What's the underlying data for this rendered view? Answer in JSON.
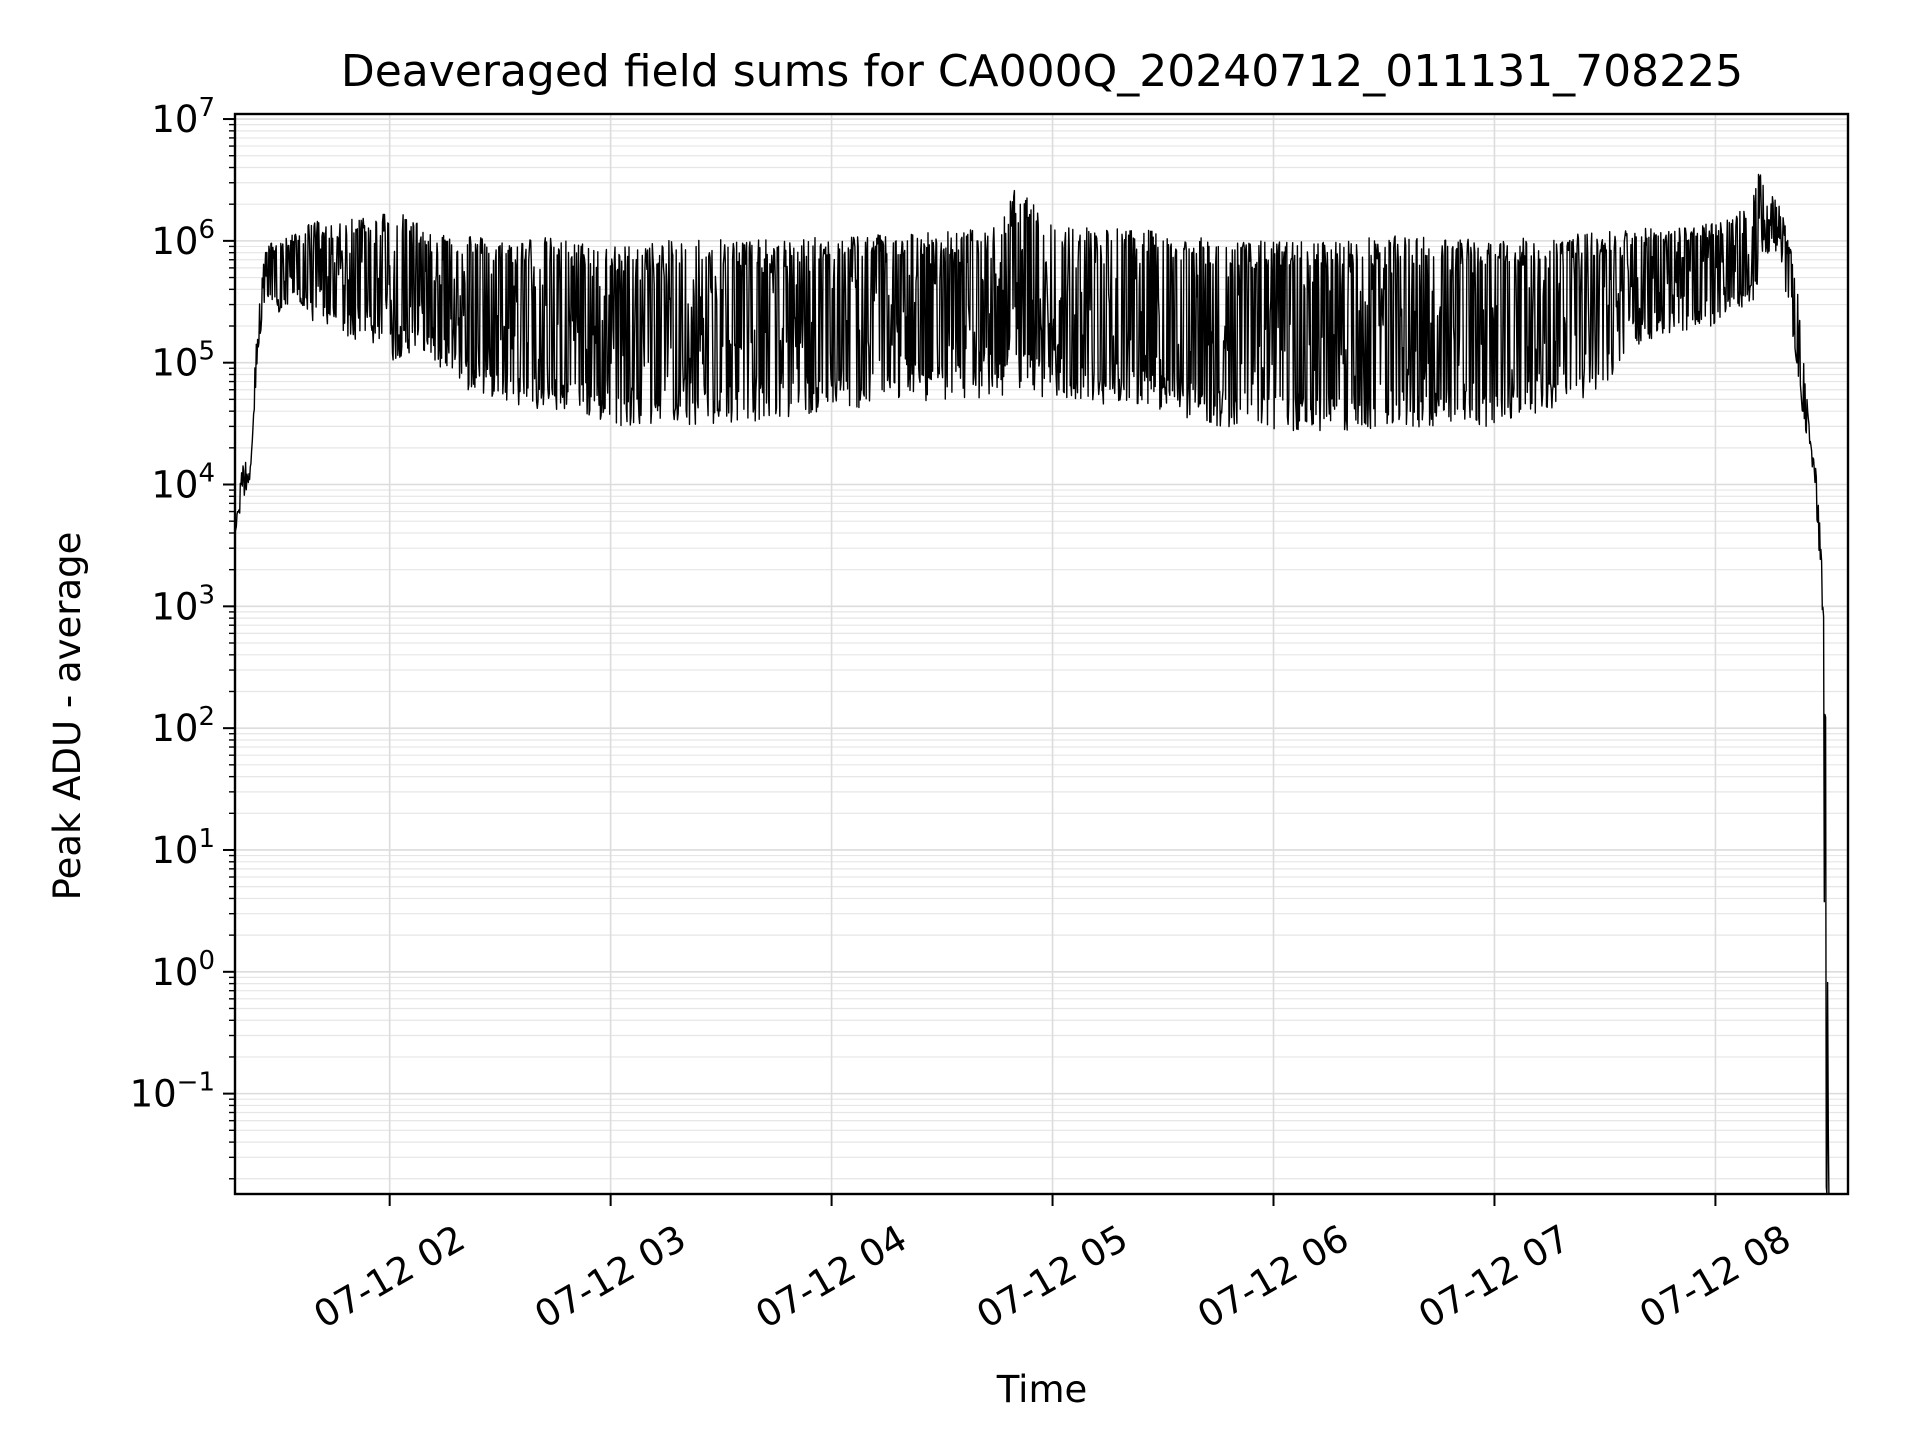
{
  "chart_data": {
    "type": "line",
    "title": "Deaveraged field sums for CA000Q_20240712_011131_708225",
    "xlabel": "Time",
    "ylabel": "Peak ADU - average",
    "x_axis": "time",
    "x_range": [
      "2024-07-12T01:18:00",
      "2024-07-12T08:36:00"
    ],
    "y_scale": "log",
    "ylim": [
      0.015,
      11000000
    ],
    "grid": true,
    "legend": "none",
    "line_color": "#000000",
    "x_tick_labels": [
      "07-12 02",
      "07-12 03",
      "07-12 04",
      "07-12 05",
      "07-12 06",
      "07-12 07",
      "07-12 08"
    ],
    "x_tick_times": [
      "2024-07-12T02:00:00",
      "2024-07-12T03:00:00",
      "2024-07-12T04:00:00",
      "2024-07-12T05:00:00",
      "2024-07-12T06:00:00",
      "2024-07-12T07:00:00",
      "2024-07-12T08:00:00"
    ],
    "y_tick_labels": [
      {
        "base": "10",
        "exp": "7",
        "value": 10000000
      },
      {
        "base": "10",
        "exp": "6",
        "value": 1000000
      },
      {
        "base": "10",
        "exp": "5",
        "value": 100000
      },
      {
        "base": "10",
        "exp": "4",
        "value": 10000
      },
      {
        "base": "10",
        "exp": "3",
        "value": 1000
      },
      {
        "base": "10",
        "exp": "2",
        "value": 100
      },
      {
        "base": "10",
        "exp": "1",
        "value": 10
      },
      {
        "base": "10",
        "exp": "0",
        "value": 1
      },
      {
        "base": "10",
        "exp": "−1",
        "value": 0.1
      }
    ],
    "series": [
      {
        "x": [
          "01:18",
          "01:20",
          "01:22",
          "01:24",
          "01:26",
          "01:28",
          "01:30",
          "01:35",
          "01:40",
          "01:45",
          "01:50",
          "01:55",
          "02:00",
          "02:05",
          "02:10",
          "02:15",
          "02:20",
          "02:30",
          "02:40",
          "02:50",
          "03:00",
          "03:15",
          "03:30",
          "03:45",
          "04:00",
          "04:15",
          "04:30",
          "04:45",
          "04:50",
          "05:00",
          "05:15",
          "05:30",
          "05:45",
          "06:00",
          "06:15",
          "06:30",
          "06:45",
          "07:00",
          "07:15",
          "07:30",
          "07:40",
          "07:50",
          "08:00",
          "08:05",
          "08:10",
          "08:12",
          "08:14",
          "08:16",
          "08:18",
          "08:20",
          "08:22",
          "08:24",
          "08:26",
          "08:27",
          "08:28",
          "08:29",
          "08:30",
          "08:31"
        ],
        "envelope_high": [
          4000,
          15000,
          18000,
          200000,
          800000,
          1000000,
          1000000,
          1200000,
          1500000,
          1300000,
          1600000,
          1700000,
          1800000,
          1600000,
          1300000,
          1200000,
          1200000,
          1000000,
          1100000,
          1000000,
          900000,
          1000000,
          1100000,
          1000000,
          1100000,
          1200000,
          1200000,
          1300000,
          2800000,
          1400000,
          1300000,
          1200000,
          1000000,
          1000000,
          1000000,
          1100000,
          1100000,
          1000000,
          1100000,
          1200000,
          1300000,
          1300000,
          1400000,
          1700000,
          2200000,
          4500000,
          2000000,
          2500000,
          1800000,
          1000000,
          500000,
          100000,
          20000,
          15000,
          10000,
          2000,
          200,
          0.01
        ],
        "envelope_low": [
          4000,
          7000,
          10000,
          100000,
          300000,
          300000,
          250000,
          300000,
          200000,
          200000,
          150000,
          150000,
          100000,
          120000,
          100000,
          80000,
          60000,
          50000,
          40000,
          40000,
          30000,
          32000,
          30000,
          35000,
          40000,
          45000,
          50000,
          50000,
          60000,
          50000,
          45000,
          40000,
          30000,
          28000,
          27000,
          28000,
          30000,
          30000,
          40000,
          60000,
          150000,
          180000,
          200000,
          250000,
          300000,
          500000,
          800000,
          700000,
          500000,
          300000,
          80000,
          30000,
          12000,
          10000,
          3000,
          800,
          0.01,
          0.01
        ]
      }
    ]
  }
}
